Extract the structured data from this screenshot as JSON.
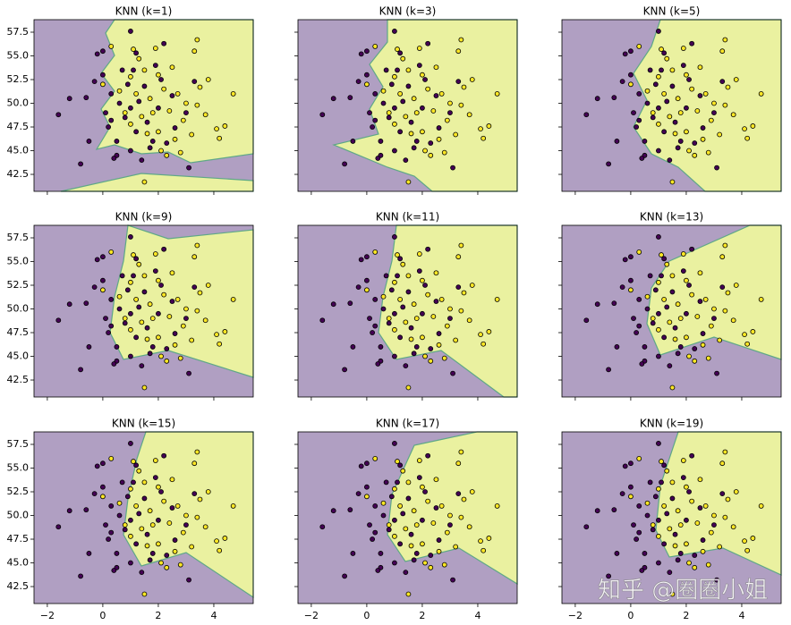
{
  "chart_data": {
    "type": "scatter",
    "titles": [
      "KNN (k=1)",
      "KNN (k=3)",
      "KNN (k=5)",
      "KNN (k=9)",
      "KNN (k=11)",
      "KNN (k=13)",
      "KNN (k=15)",
      "KNN (k=17)",
      "KNN (k=19)"
    ],
    "x": [
      -1.6,
      -1.2,
      -0.8,
      -0.5,
      -0.6,
      -0.3,
      -0.2,
      0,
      0,
      0.1,
      0.2,
      0.3,
      0.5,
      0.5,
      0.6,
      0.8,
      0.9,
      1,
      1,
      1.1,
      1.2,
      1.3,
      1.4,
      1.5,
      1.6,
      1.8,
      1.9,
      2,
      2.1,
      2.3,
      2.5,
      2.6,
      3,
      3.1,
      3.3,
      0.3,
      0.7,
      1.0,
      1.7,
      1.2,
      0.4,
      2.2,
      0,
      0.3,
      0.6,
      0.8,
      1,
      1.2,
      1.3,
      1.5,
      1.5,
      1.7,
      1.8,
      1.9,
      2,
      2,
      2.2,
      2.3,
      2.4,
      2.5,
      2.6,
      2.7,
      2.9,
      3,
      3.2,
      3.3,
      3.4,
      3.5,
      3.7,
      3.8,
      4.1,
      4.2,
      4.4,
      4.7,
      3.4,
      1,
      1.6,
      2.8,
      2.1,
      1.4,
      1.1
    ],
    "y": [
      48.8,
      50.5,
      43.6,
      46,
      50.6,
      52.3,
      55.2,
      55.5,
      53,
      49,
      47.5,
      51,
      46,
      44.5,
      50,
      48.5,
      52,
      57.6,
      45,
      53.5,
      47,
      50.2,
      44,
      51.8,
      48,
      46,
      54,
      49.5,
      52.5,
      45.8,
      50.8,
      47.4,
      49,
      43.2,
      52.3,
      48.2,
      53.5,
      49.5,
      45.3,
      55.3,
      44.2,
      56.3,
      52,
      56,
      51.3,
      49,
      47.8,
      51,
      54.7,
      53.5,
      41.7,
      50.5,
      49,
      55.8,
      47,
      53,
      51.5,
      44.5,
      49.2,
      53.8,
      46.2,
      51,
      48.2,
      50,
      46.7,
      55.5,
      49.8,
      51.7,
      48.8,
      52.5,
      47.3,
      46.3,
      47.6,
      51,
      56.7,
      52.8,
      46.8,
      44.8,
      45,
      48.6,
      55.7
    ],
    "classes": [
      0,
      0,
      0,
      0,
      0,
      0,
      0,
      0,
      0,
      0,
      0,
      0,
      0,
      0,
      0,
      0,
      0,
      0,
      0,
      0,
      0,
      0,
      0,
      0,
      0,
      0,
      0,
      0,
      0,
      0,
      0,
      0,
      0,
      0,
      0,
      0,
      0,
      0,
      0,
      0,
      0,
      0,
      1,
      1,
      1,
      1,
      1,
      1,
      1,
      1,
      1,
      1,
      1,
      1,
      1,
      1,
      1,
      1,
      1,
      1,
      1,
      1,
      1,
      1,
      1,
      1,
      1,
      1,
      1,
      1,
      1,
      1,
      1,
      1,
      1,
      1,
      1,
      1,
      1,
      1,
      1
    ],
    "colors": [
      "#440154",
      "#fde725"
    ],
    "xlim": [
      -2.48,
      5.42
    ],
    "ylim": [
      40.71,
      58.82
    ],
    "xticks": [
      {
        "value": -2,
        "label": "−2"
      },
      0,
      2,
      4
    ],
    "yticks": [
      42.5,
      {
        "value": 45,
        "label": "45.0"
      },
      47.5,
      {
        "value": 50,
        "label": "50.0"
      },
      52.5,
      {
        "value": 55,
        "label": "55.0"
      },
      57.5
    ]
  },
  "watermark": "知乎 @圈圈小姐"
}
